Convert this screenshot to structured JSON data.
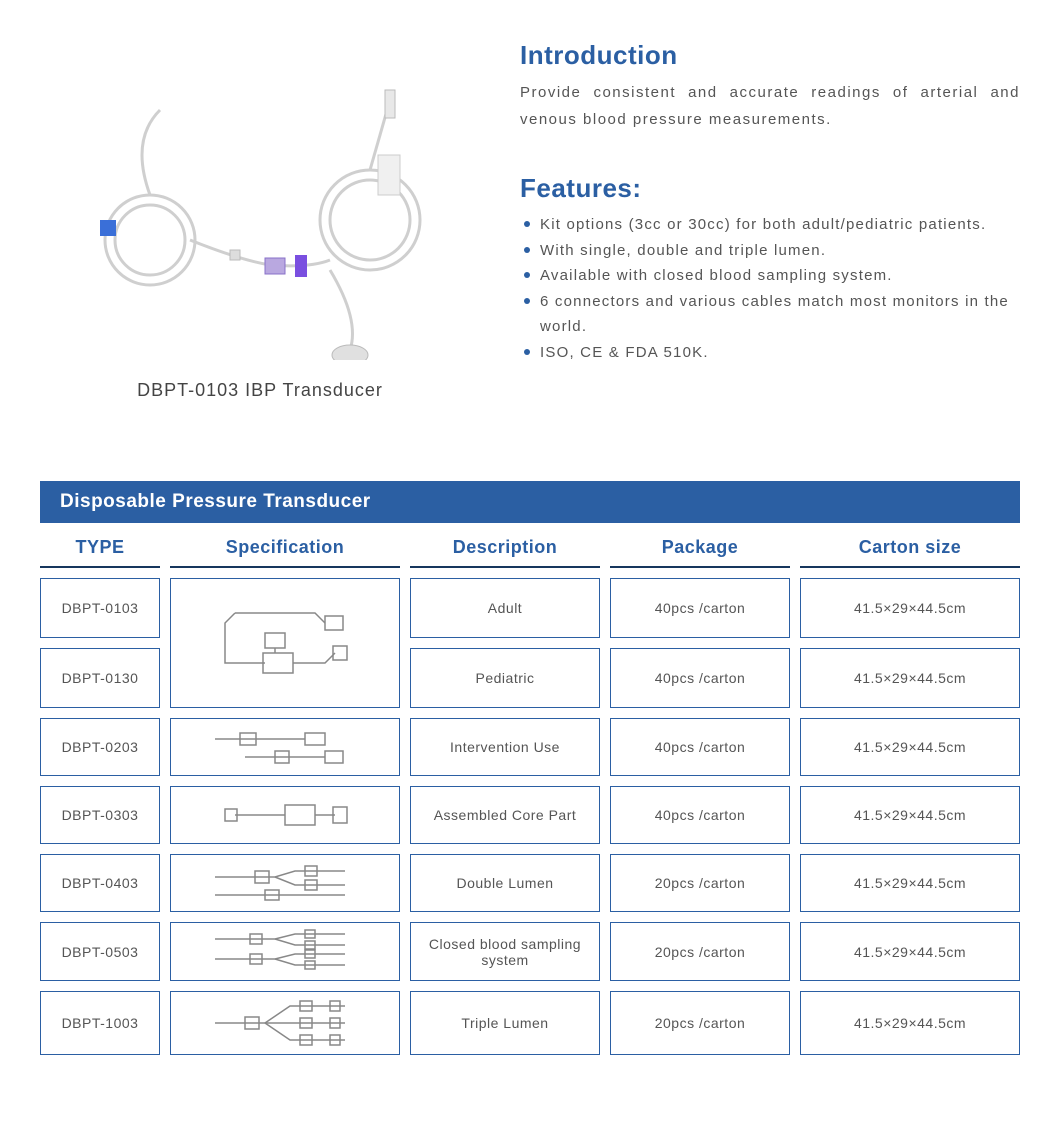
{
  "colors": {
    "primary_blue": "#2b5fa3",
    "header_bar": "#2b5fa3",
    "cell_border": "#2b5fa3",
    "bullet": "#2b5fa3",
    "header_underline": "#17365d",
    "diagram_stroke": "#888888"
  },
  "product": {
    "caption": "DBPT-0103 IBP Transducer"
  },
  "intro": {
    "title": "Introduction",
    "text": "Provide consistent and accurate readings of arterial and venous blood pressure measurements."
  },
  "features": {
    "title": "Features:",
    "items": [
      "Kit options (3cc or 30cc) for both adult/pediatric patients.",
      "With single, double and triple lumen.",
      "Available with closed blood sampling system.",
      "6 connectors and various cables match most monitors in the world.",
      "ISO, CE & FDA 510K."
    ]
  },
  "table": {
    "title": "Disposable Pressure Transducer",
    "headers": {
      "type": "TYPE",
      "spec": "Specification",
      "desc": "Description",
      "pkg": "Package",
      "size": "Carton  size"
    },
    "rows": [
      {
        "type": "DBPT-0103",
        "desc": "Adult",
        "pkg": "40pcs /carton",
        "size": "41.5×29×44.5cm",
        "merge_spec": true
      },
      {
        "type": "DBPT-0130",
        "desc": "Pediatric",
        "pkg": "40pcs /carton",
        "size": "41.5×29×44.5cm",
        "merge_spec": true
      },
      {
        "type": "DBPT-0203",
        "desc": "Intervention Use",
        "pkg": "40pcs /carton",
        "size": "41.5×29×44.5cm"
      },
      {
        "type": "DBPT-0303",
        "desc": "Assembled Core Part",
        "pkg": "40pcs /carton",
        "size": "41.5×29×44.5cm"
      },
      {
        "type": "DBPT-0403",
        "desc": "Double Lumen",
        "pkg": "20pcs /carton",
        "size": "41.5×29×44.5cm"
      },
      {
        "type": "DBPT-0503",
        "desc": "Closed blood sampling system",
        "pkg": "20pcs /carton",
        "size": "41.5×29×44.5cm"
      },
      {
        "type": "DBPT-1003",
        "desc": "Triple Lumen",
        "pkg": "20pcs /carton",
        "size": "41.5×29×44.5cm"
      }
    ]
  }
}
